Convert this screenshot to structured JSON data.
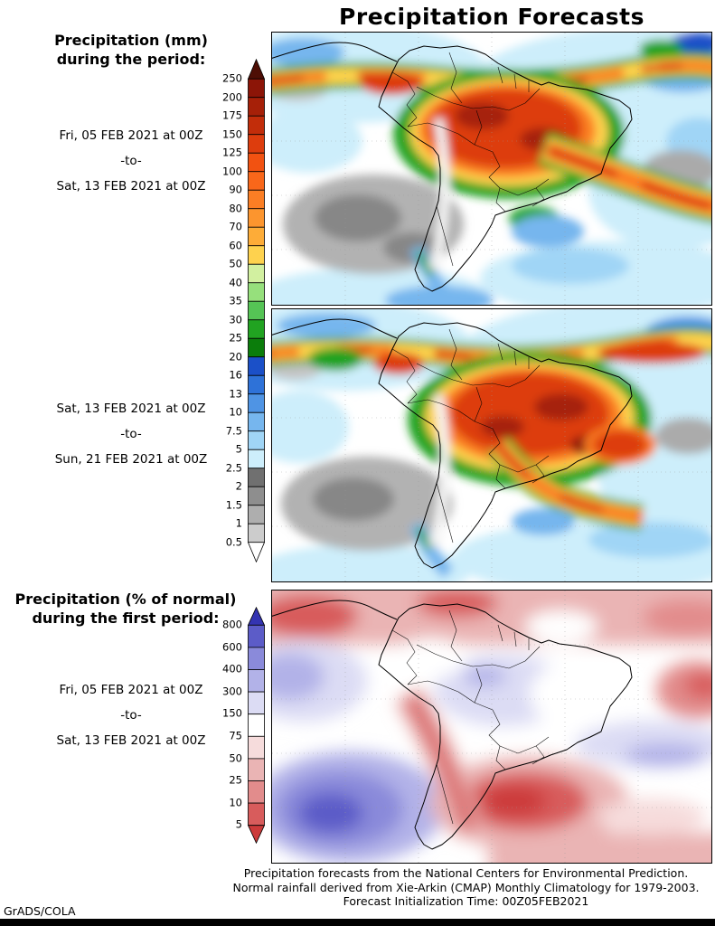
{
  "title": "Precipitation Forecasts",
  "left": {
    "mm_heading_1": "Precipitation (mm)",
    "mm_heading_2": "during the period:",
    "period1_from": "Fri, 05 FEB 2021 at 00Z",
    "period1_sep": "-to-",
    "period1_to": "Sat, 13 FEB 2021 at 00Z",
    "period2_from": "Sat, 13 FEB 2021 at 00Z",
    "period2_sep": "-to-",
    "period2_to": "Sun, 21 FEB 2021 at 00Z",
    "pct_heading_1": "Precipitation (% of normal)",
    "pct_heading_2": "during the first period:",
    "period3_from": "Fri, 05 FEB 2021 at 00Z",
    "period3_sep": "-to-",
    "period3_to": "Sat, 13 FEB 2021 at 00Z"
  },
  "colorbars": {
    "mm": {
      "labels": [
        "250",
        "200",
        "175",
        "150",
        "125",
        "100",
        "90",
        "80",
        "70",
        "60",
        "50",
        "40",
        "35",
        "30",
        "25",
        "20",
        "16",
        "13",
        "10",
        "7.5",
        "5",
        "2.5",
        "2",
        "1.5",
        "1",
        "0.5"
      ],
      "colors": [
        "#4e0e05",
        "#8c1507",
        "#a62008",
        "#c22d0a",
        "#dd3d0d",
        "#f25211",
        "#f9671a",
        "#fb7e24",
        "#fc952e",
        "#fdac38",
        "#fed24e",
        "#d2f0a0",
        "#96e07c",
        "#55c455",
        "#21a321",
        "#0b7d0b",
        "#1b50c8",
        "#2e72d8",
        "#4f94e4",
        "#76b6ee",
        "#a0d5f6",
        "#cdeefb",
        "#707070",
        "#8e8e8e",
        "#aeaeae",
        "#cccccc",
        "#ffffff"
      ]
    },
    "percent": {
      "labels": [
        "800",
        "600",
        "400",
        "300",
        "150",
        "75",
        "50",
        "25",
        "10",
        "5"
      ],
      "colors": [
        "#3434b2",
        "#5c5cc8",
        "#8a8ada",
        "#b2b2e8",
        "#dcdcf4",
        "#ffffff",
        "#f6dcdc",
        "#eab4b4",
        "#e28c8c",
        "#d85c5c",
        "#cc3a3a"
      ]
    }
  },
  "footer": {
    "line1": "Precipitation forecasts from the National Centers for Environmental Prediction.",
    "line2": "Normal rainfall derived from Xie-Arkin (CMAP) Monthly Climatology for 1979-2003.",
    "line3": "Forecast Initialization Time: 00Z05FEB2021",
    "credit": "GrADS/COLA"
  }
}
